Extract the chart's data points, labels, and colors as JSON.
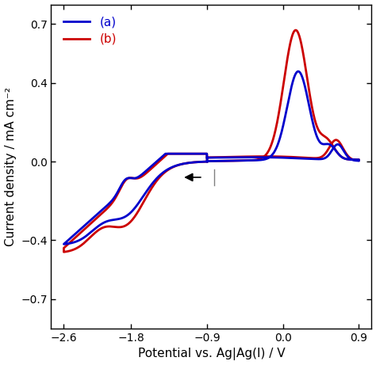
{
  "xlabel": "Potential vs. Ag|Ag(I) / V",
  "ylabel": "Current density / mA cm⁻²",
  "xlim": [
    -2.75,
    1.05
  ],
  "ylim": [
    -0.85,
    0.8
  ],
  "xticks": [
    -2.6,
    -1.8,
    -0.9,
    0.0,
    0.9
  ],
  "yticks": [
    -0.7,
    -0.4,
    0.0,
    0.4,
    0.7
  ],
  "color_a": "#0000cc",
  "color_b": "#cc0000",
  "legend_labels": [
    "(a)",
    "(b)"
  ],
  "line_width": 2.0,
  "background_color": "#ffffff"
}
